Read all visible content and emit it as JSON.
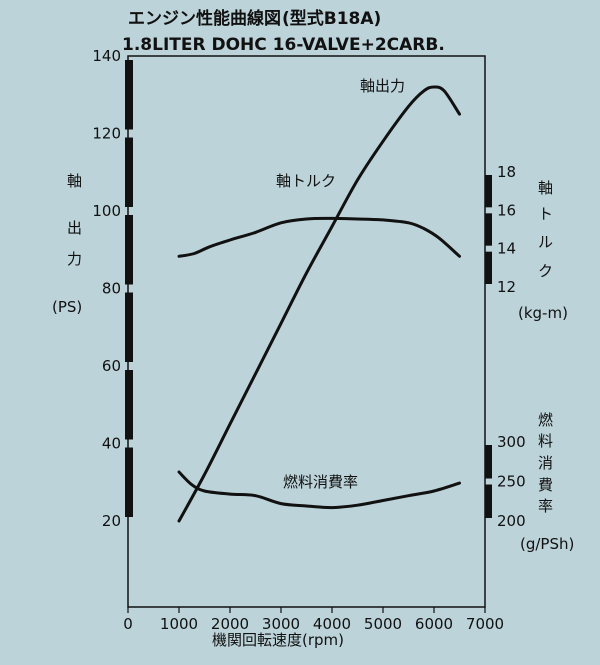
{
  "title": "エンジン性能曲線図",
  "title_model": "(型式B18A)",
  "subtitle": "1.8LITER DOHC 16-VALVE+2CARB.",
  "chart_data": {
    "type": "line",
    "xlabel": "機関回転速度(rpm)",
    "x_ticks": [
      "0",
      "1000",
      "2000",
      "3000",
      "4000",
      "5000",
      "6000",
      "7000"
    ],
    "xlim": [
      0,
      7000
    ],
    "axes": {
      "power": {
        "label_chars": [
          "軸",
          "出",
          "力"
        ],
        "unit": "(PS)",
        "ticks": [
          "140",
          "120",
          "100",
          "80",
          "60",
          "40",
          "20"
        ],
        "range": [
          20,
          140
        ]
      },
      "torque": {
        "label_chars": [
          "軸",
          "ト",
          "ル",
          "ク"
        ],
        "unit": "(kg-m)",
        "ticks": [
          "18",
          "16",
          "14",
          "12"
        ],
        "range": [
          12,
          18
        ]
      },
      "fuel": {
        "label_chars": [
          "燃",
          "料",
          "消",
          "費",
          "率"
        ],
        "unit": "(g/PSh)",
        "ticks": [
          "300",
          "250",
          "200"
        ],
        "range": [
          200,
          300
        ]
      }
    },
    "series": [
      {
        "name": "軸出力",
        "axis": "power",
        "x": [
          1000,
          1500,
          2000,
          2500,
          3000,
          3500,
          4000,
          4500,
          5000,
          5500,
          5800,
          6000,
          6200,
          6500
        ],
        "y": [
          20,
          32,
          45,
          58,
          71,
          84,
          96,
          108,
          118,
          127,
          131,
          132,
          131,
          125
        ]
      },
      {
        "name": "軸トルク",
        "axis": "torque",
        "x": [
          1000,
          1300,
          1600,
          2000,
          2500,
          3000,
          3500,
          4000,
          4500,
          5000,
          5500,
          5800,
          6100,
          6500
        ],
        "y": [
          13.6,
          13.75,
          14.1,
          14.45,
          14.85,
          15.35,
          15.55,
          15.58,
          15.55,
          15.5,
          15.35,
          15.05,
          14.55,
          13.6
        ]
      },
      {
        "name": "燃料消費率",
        "axis": "fuel",
        "x": [
          1000,
          1250,
          1500,
          2000,
          2500,
          3000,
          3500,
          4000,
          4500,
          5000,
          5500,
          6000,
          6500
        ],
        "y": [
          262,
          246,
          238,
          234,
          232,
          222,
          219,
          217,
          220,
          226,
          232,
          238,
          248
        ]
      }
    ],
    "grid": false
  }
}
